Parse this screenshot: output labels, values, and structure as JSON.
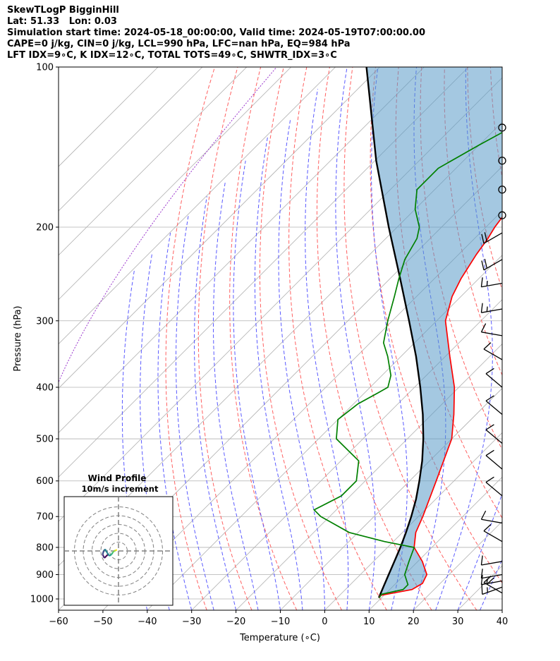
{
  "title_lines": [
    "SkewTLogP BigginHill",
    "Lat: 51.33   Lon: 0.03",
    "Simulation start time: 2024-05-18_00:00:00, Valid time: 2024-05-19T07:00:00.00",
    "CAPE=0 j/kg, CIN=0 j/kg, LCL=990 hPa, LFC=nan hPa, EQ=984 hPa",
    "LFT IDX=9∘C, K IDX=12∘C, TOTAL TOTS=49∘C, SHWTR_IDX=3∘C"
  ],
  "chart_data": {
    "type": "skewt-logp",
    "xlabel": "Temperature (∘C)",
    "ylabel": "Pressure (hPa)",
    "xlim": [
      -60,
      40
    ],
    "ylim": [
      1050,
      100
    ],
    "x_ticks": [
      "−60",
      "−50",
      "−40",
      "−30",
      "−20",
      "−10",
      "0",
      "10",
      "20",
      "30",
      "40"
    ],
    "y_ticks": [
      "100",
      "200",
      "300",
      "400",
      "500",
      "600",
      "700",
      "800",
      "900",
      "1000"
    ],
    "grid": true,
    "series": [
      {
        "role": "temperature",
        "color": "#ff0000",
        "points": [
          [
            995,
            9.5
          ],
          [
            985,
            9.2
          ],
          [
            960,
            15
          ],
          [
            935,
            16
          ],
          [
            900,
            15
          ],
          [
            850,
            11
          ],
          [
            800,
            6
          ],
          [
            750,
            3
          ],
          [
            700,
            1
          ],
          [
            600,
            -4
          ],
          [
            500,
            -10
          ],
          [
            450,
            -15
          ],
          [
            400,
            -21
          ],
          [
            350,
            -29
          ],
          [
            300,
            -38
          ],
          [
            270,
            -42
          ],
          [
            250,
            -44
          ],
          [
            225,
            -46
          ],
          [
            210,
            -47
          ],
          [
            200,
            -48
          ],
          [
            185,
            -49
          ],
          [
            165,
            -48
          ],
          [
            150,
            -46
          ],
          [
            135,
            -43
          ],
          [
            123,
            -40
          ],
          [
            110,
            -36
          ],
          [
            100,
            -33
          ]
        ]
      },
      {
        "role": "dewpoint",
        "color": "#008000",
        "points": [
          [
            995,
            9.5
          ],
          [
            980,
            9.2
          ],
          [
            960,
            13
          ],
          [
            940,
            13
          ],
          [
            900,
            10
          ],
          [
            850,
            8
          ],
          [
            800,
            6
          ],
          [
            780,
            -2
          ],
          [
            750,
            -12
          ],
          [
            700,
            -22
          ],
          [
            680,
            -25
          ],
          [
            640,
            -22
          ],
          [
            600,
            -22
          ],
          [
            550,
            -26
          ],
          [
            500,
            -36
          ],
          [
            460,
            -40
          ],
          [
            430,
            -39
          ],
          [
            410,
            -37
          ],
          [
            400,
            -36
          ],
          [
            380,
            -38
          ],
          [
            350,
            -43
          ],
          [
            330,
            -47
          ],
          [
            300,
            -51
          ],
          [
            270,
            -55
          ],
          [
            250,
            -58
          ],
          [
            230,
            -61
          ],
          [
            210,
            -63
          ],
          [
            200,
            -65
          ],
          [
            185,
            -70
          ],
          [
            170,
            -74
          ],
          [
            155,
            -74
          ],
          [
            140,
            -70
          ],
          [
            125,
            -65
          ],
          [
            110,
            -60
          ],
          [
            100,
            -56
          ]
        ]
      },
      {
        "role": "parcel",
        "color": "#000000",
        "points": [
          [
            995,
            9.4
          ],
          [
            950,
            8
          ],
          [
            900,
            6.4
          ],
          [
            850,
            4.7
          ],
          [
            800,
            2.9
          ],
          [
            750,
            0.8
          ],
          [
            700,
            -1.6
          ],
          [
            650,
            -4.4
          ],
          [
            600,
            -7.8
          ],
          [
            550,
            -11.7
          ],
          [
            500,
            -16.4
          ],
          [
            450,
            -22
          ],
          [
            400,
            -28.7
          ],
          [
            350,
            -36.6
          ],
          [
            300,
            -46.2
          ],
          [
            250,
            -57.7
          ],
          [
            200,
            -71.9
          ],
          [
            150,
            -89.7
          ],
          [
            100,
            -113
          ]
        ]
      }
    ],
    "wind_barbs": [
      {
        "p": 130,
        "calm": true
      },
      {
        "p": 150,
        "calm": true
      },
      {
        "p": 170,
        "calm": true
      },
      {
        "p": 190,
        "calm": true
      },
      {
        "p": 205,
        "dir": 240,
        "kt": 20
      },
      {
        "p": 230,
        "dir": 240,
        "kt": 20
      },
      {
        "p": 255,
        "dir": 260,
        "kt": 15
      },
      {
        "p": 285,
        "dir": 260,
        "kt": 15
      },
      {
        "p": 320,
        "dir": 280,
        "kt": 10
      },
      {
        "p": 355,
        "dir": 300,
        "kt": 10
      },
      {
        "p": 400,
        "dir": 310,
        "kt": 10
      },
      {
        "p": 450,
        "dir": 310,
        "kt": 10
      },
      {
        "p": 510,
        "dir": 310,
        "kt": 10
      },
      {
        "p": 570,
        "dir": 310,
        "kt": 10
      },
      {
        "p": 640,
        "dir": 310,
        "kt": 10
      },
      {
        "p": 720,
        "dir": 280,
        "kt": 10
      },
      {
        "p": 780,
        "dir": 300,
        "kt": 10
      },
      {
        "p": 850,
        "dir": 260,
        "kt": 10
      },
      {
        "p": 900,
        "dir": 260,
        "kt": 10
      },
      {
        "p": 925,
        "dir": 260,
        "kt": 15
      },
      {
        "p": 950,
        "dir": 250,
        "kt": 15
      },
      {
        "p": 975,
        "dir": 300,
        "kt": 20
      }
    ],
    "inset": {
      "title": "Wind Profile",
      "subtitle": "10m/s increment",
      "points": [
        [
          -3,
          -1
        ],
        [
          -3.5,
          -1.5
        ],
        [
          -4,
          -2
        ],
        [
          -4.5,
          -1
        ],
        [
          -4.2,
          0
        ],
        [
          -3.8,
          0.5
        ],
        [
          -3.2,
          -0.5
        ],
        [
          -2.6,
          -1.4
        ],
        [
          -2,
          -1
        ],
        [
          -1.6,
          -0.4
        ],
        [
          -1.2,
          0
        ],
        [
          -0.8,
          0.2
        ],
        [
          -0.4,
          0.3
        ]
      ]
    }
  }
}
